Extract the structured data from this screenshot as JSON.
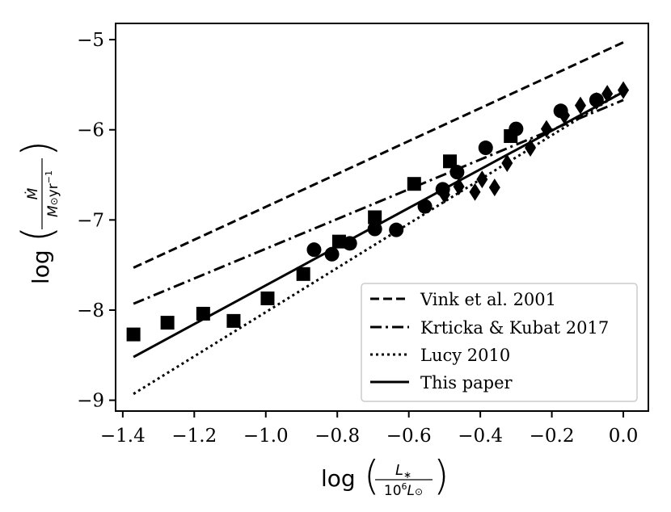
{
  "chart_data": {
    "type": "scatter",
    "xlabel": "log(L*/10^6 L☉)",
    "ylabel": "log(Ṁ/(M☉ yr^-1))",
    "xlim": [
      -1.42,
      0.07
    ],
    "ylim": [
      -9.12,
      -4.82
    ],
    "x_ticks": [
      -1.4,
      -1.2,
      -1.0,
      -0.8,
      -0.6,
      -0.4,
      -0.2,
      0.0
    ],
    "x_tick_labels": [
      "−1.4",
      "−1.2",
      "−1.0",
      "−0.8",
      "−0.6",
      "−0.4",
      "−0.2",
      "0.0"
    ],
    "y_ticks": [
      -9,
      -8,
      -7,
      -6,
      -5
    ],
    "y_tick_labels": [
      "−9",
      "−8",
      "−7",
      "−6",
      "−5"
    ],
    "grid": false,
    "legend_position": "lower-right",
    "lines": [
      {
        "name": "Vink et al. 2001",
        "style": "dashed",
        "x": [
          -1.37,
          0.0
        ],
        "y": [
          -7.53,
          -5.03
        ]
      },
      {
        "name": "Krticka & Kubat 2017",
        "style": "dashdot",
        "x": [
          -1.37,
          0.0
        ],
        "y": [
          -7.93,
          -5.67
        ]
      },
      {
        "name": "Lucy 2010",
        "style": "dotted",
        "x": [
          -1.37,
          0.0
        ],
        "y": [
          -8.93,
          -5.57
        ]
      },
      {
        "name": "This paper",
        "style": "solid",
        "x": [
          -1.37,
          0.0
        ],
        "y": [
          -8.52,
          -5.58
        ]
      }
    ],
    "series": [
      {
        "marker": "square",
        "x": [
          -1.37,
          -1.275,
          -1.175,
          -1.09,
          -0.995,
          -0.895,
          -0.795,
          -0.695,
          -0.585,
          -0.485,
          -0.315
        ],
        "y": [
          -8.27,
          -8.14,
          -8.04,
          -8.12,
          -7.87,
          -7.6,
          -7.24,
          -6.97,
          -6.6,
          -6.35,
          -6.07
        ]
      },
      {
        "marker": "circle",
        "x": [
          -0.865,
          -0.815,
          -0.765,
          -0.695,
          -0.635,
          -0.555,
          -0.505,
          -0.465,
          -0.385,
          -0.3,
          -0.175,
          -0.075
        ],
        "y": [
          -7.33,
          -7.38,
          -7.26,
          -7.1,
          -7.11,
          -6.85,
          -6.66,
          -6.47,
          -6.2,
          -5.99,
          -5.79,
          -5.67
        ]
      },
      {
        "marker": "diamond",
        "x": [
          -0.5,
          -0.46,
          -0.415,
          -0.395,
          -0.36,
          -0.325,
          -0.26,
          -0.215,
          -0.165,
          -0.12,
          -0.075,
          -0.045,
          0.0
        ],
        "y": [
          -6.72,
          -6.63,
          -6.69,
          -6.55,
          -6.64,
          -6.37,
          -6.2,
          -5.99,
          -5.84,
          -5.73,
          -5.68,
          -5.6,
          -5.56
        ]
      }
    ]
  }
}
